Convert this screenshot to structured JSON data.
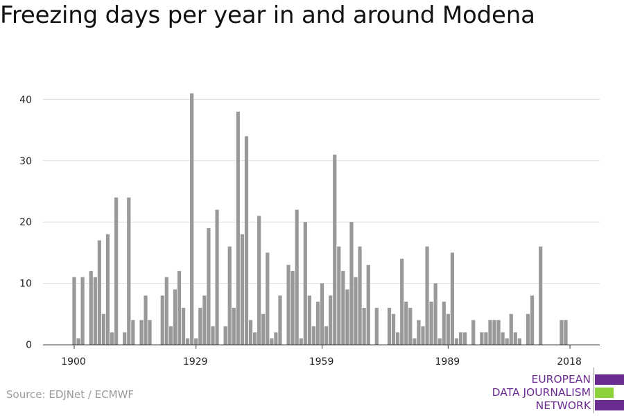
{
  "title": "Freezing days per year in and around Modena",
  "source": "Source: EDJNet / ECMWF",
  "logo": {
    "lines": [
      "EUROPEAN",
      "DATA JOURNALISM",
      "NETWORK"
    ],
    "text_color": "#6b2c91",
    "bar_colors": [
      "#6b2c91",
      "#8cd23c",
      "#6b2c91"
    ],
    "divider_color": "#999999"
  },
  "colors": {
    "bar": "#999999",
    "grid": "#dddddd",
    "axis": "#333333",
    "tick_label": "#222222"
  },
  "chart_data": {
    "type": "bar",
    "title": "Freezing days per year in and around Modena",
    "xlabel": "",
    "ylabel": "",
    "x_tick_labels": [
      "1900",
      "1929",
      "1959",
      "1989",
      "2018"
    ],
    "y_ticks": [
      0,
      10,
      20,
      30,
      40
    ],
    "ylim": [
      0,
      43
    ],
    "grid": true,
    "legend": "none",
    "years": [
      1900,
      1901,
      1902,
      1903,
      1904,
      1905,
      1906,
      1907,
      1908,
      1909,
      1910,
      1911,
      1912,
      1913,
      1914,
      1915,
      1916,
      1917,
      1918,
      1919,
      1920,
      1921,
      1922,
      1923,
      1924,
      1925,
      1926,
      1927,
      1928,
      1929,
      1930,
      1931,
      1932,
      1933,
      1934,
      1935,
      1936,
      1937,
      1938,
      1939,
      1940,
      1941,
      1942,
      1943,
      1944,
      1945,
      1946,
      1947,
      1948,
      1949,
      1950,
      1951,
      1952,
      1953,
      1954,
      1955,
      1956,
      1957,
      1958,
      1959,
      1960,
      1961,
      1962,
      1963,
      1964,
      1965,
      1966,
      1967,
      1968,
      1969,
      1970,
      1971,
      1972,
      1973,
      1974,
      1975,
      1976,
      1977,
      1978,
      1979,
      1980,
      1981,
      1982,
      1983,
      1984,
      1985,
      1986,
      1987,
      1988,
      1989,
      1990,
      1991,
      1992,
      1993,
      1994,
      1995,
      1996,
      1997,
      1998,
      1999,
      2000,
      2001,
      2002,
      2003,
      2004,
      2005,
      2006,
      2007,
      2008,
      2009,
      2010,
      2011,
      2012,
      2013,
      2014,
      2015,
      2016,
      2017,
      2018
    ],
    "values": [
      11,
      1,
      11,
      0,
      12,
      11,
      17,
      5,
      18,
      2,
      24,
      0,
      2,
      24,
      4,
      0,
      4,
      8,
      4,
      0,
      0,
      8,
      11,
      3,
      9,
      12,
      6,
      1,
      41,
      1,
      6,
      8,
      19,
      3,
      22,
      0,
      3,
      16,
      6,
      38,
      18,
      34,
      4,
      2,
      21,
      5,
      15,
      1,
      2,
      8,
      0,
      13,
      12,
      22,
      1,
      20,
      8,
      3,
      7,
      10,
      3,
      8,
      31,
      16,
      12,
      9,
      20,
      11,
      16,
      6,
      13,
      0,
      6,
      0,
      0,
      6,
      5,
      2,
      14,
      7,
      6,
      1,
      4,
      3,
      16,
      7,
      10,
      1,
      7,
      5,
      15,
      1,
      2,
      2,
      0,
      4,
      0,
      2,
      2,
      4,
      4,
      4,
      2,
      1,
      5,
      2,
      1,
      0,
      5,
      8,
      0,
      16,
      0,
      0,
      0,
      0,
      4,
      4,
      0
    ]
  }
}
